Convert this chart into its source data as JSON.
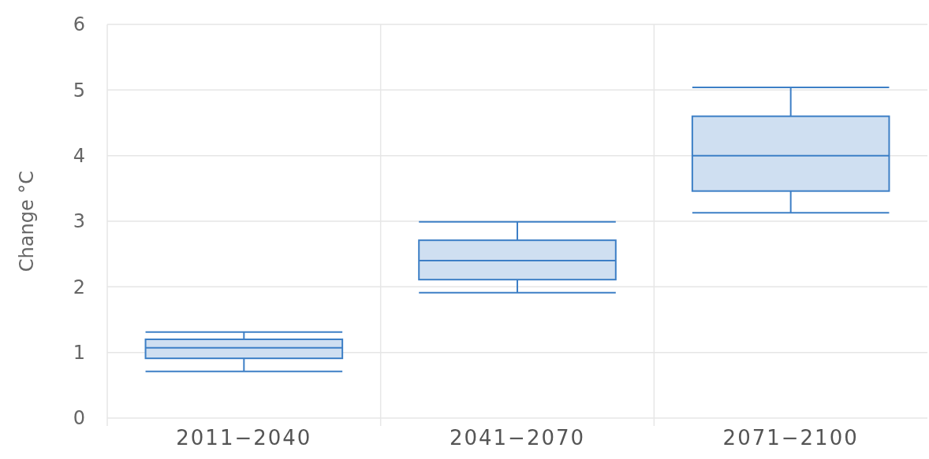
{
  "chart_data": {
    "type": "box",
    "ylabel": "Change °C",
    "categories": [
      "2011−2040",
      "2041−2070",
      "2071−2100"
    ],
    "ylim": [
      0,
      6
    ],
    "yticks": [
      0,
      1,
      2,
      3,
      4,
      5,
      6
    ],
    "grid": true,
    "series": [
      {
        "color": "#3d7fc6",
        "boxes": [
          {
            "low": 0.71,
            "q1": 0.91,
            "median": 1.07,
            "q3": 1.2,
            "high": 1.31
          },
          {
            "low": 1.91,
            "q1": 2.11,
            "median": 2.4,
            "q3": 2.71,
            "high": 2.99
          },
          {
            "low": 3.13,
            "q1": 3.46,
            "median": 4.0,
            "q3": 4.6,
            "high": 5.04
          }
        ]
      }
    ]
  }
}
